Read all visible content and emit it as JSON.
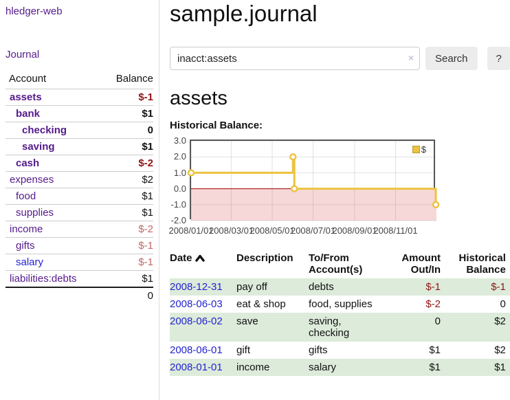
{
  "colors": {
    "link_purple": "#551A8B",
    "link_blue": "#2323d1",
    "negative_red": "#8f1515",
    "negative_rose": "#c06767",
    "row_green": "#ddebda",
    "chart_line_yellow": "#EDC240",
    "chart_negative_pink": "#f7d8d8"
  },
  "sidebar": {
    "brand": "hledger-web",
    "nav_journal": "Journal",
    "accounts": {
      "header_account": "Account",
      "header_balance": "Balance",
      "rows": [
        {
          "name": "assets",
          "indent": 1,
          "emphasized": true,
          "balance": "$-1"
        },
        {
          "name": "bank",
          "indent": 2,
          "emphasized": true,
          "balance": "$1"
        },
        {
          "name": "checking",
          "indent": 3,
          "emphasized": true,
          "balance": "0"
        },
        {
          "name": "saving",
          "indent": 3,
          "emphasized": true,
          "balance": "$1"
        },
        {
          "name": "cash",
          "indent": 2,
          "emphasized": true,
          "balance": "$-2"
        },
        {
          "name": "expenses",
          "indent": 1,
          "emphasized": false,
          "balance": "$2"
        },
        {
          "name": "food",
          "indent": 2,
          "emphasized": false,
          "balance": "$1"
        },
        {
          "name": "supplies",
          "indent": 2,
          "emphasized": false,
          "balance": "$1"
        },
        {
          "name": "income",
          "indent": 1,
          "emphasized": false,
          "balance": "$-2"
        },
        {
          "name": "gifts",
          "indent": 2,
          "emphasized": false,
          "balance": "$-1"
        },
        {
          "name": "salary",
          "indent": 2,
          "emphasized": false,
          "balance": "$-1"
        },
        {
          "name": "liabilities:debts",
          "indent": 1,
          "emphasized": false,
          "balance": "$1"
        }
      ],
      "total": "0"
    }
  },
  "main": {
    "title": "sample.journal",
    "search": {
      "value": "inacct:assets",
      "clear_icon": "×",
      "button_label": "Search",
      "help_label": "?"
    },
    "account_heading": "assets",
    "chart_label": "Historical Balance:",
    "register": {
      "headers": {
        "date": "Date",
        "description": "Description",
        "account": "To/From Account(s)",
        "amount": "Amount Out/In",
        "balance": "Historical Balance"
      },
      "rows": [
        {
          "date": "2008-12-31",
          "description": "pay off",
          "accounts": "debts",
          "amount": "$-1",
          "balance": "$-1"
        },
        {
          "date": "2008-06-03",
          "description": "eat & shop",
          "accounts": "food, supplies",
          "amount": "$-2",
          "balance": "0"
        },
        {
          "date": "2008-06-02",
          "description": "save",
          "accounts": "saving, checking",
          "amount": "0",
          "balance": "$2"
        },
        {
          "date": "2008-06-01",
          "description": "gift",
          "accounts": "gifts",
          "amount": "$1",
          "balance": "$2"
        },
        {
          "date": "2008-01-01",
          "description": "income",
          "accounts": "salary",
          "amount": "$1",
          "balance": "$1"
        }
      ]
    }
  },
  "chart_data": {
    "type": "line",
    "title": "Historical Balance:",
    "step": true,
    "x_domain": [
      "2008-01-01",
      "2009-01-01"
    ],
    "ylim": [
      -2,
      3
    ],
    "x_ticks": [
      "2008/01/01",
      "2008/03/01",
      "2008/05/01",
      "2008/07/01",
      "2008/09/01",
      "2008/11/01"
    ],
    "y_ticks": [
      "3.0",
      "2.0",
      "1.0",
      "0.0",
      "-1.0",
      "-2.0"
    ],
    "series": [
      {
        "name": "$",
        "points": [
          [
            "2008-01-01",
            1
          ],
          [
            "2008-06-01",
            2
          ],
          [
            "2008-06-03",
            0
          ],
          [
            "2008-12-31",
            -1
          ]
        ]
      }
    ],
    "legend": {
      "label": "$",
      "position": "top-right"
    },
    "line_color": "#EDC240",
    "negative_region_color": "#f7d8d8",
    "zero_line_color": "#a40000",
    "grid": true
  }
}
